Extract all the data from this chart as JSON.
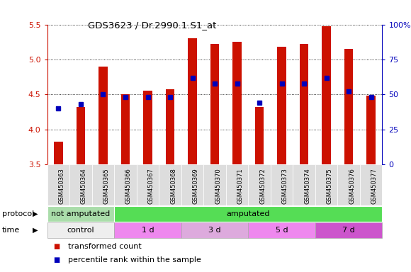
{
  "title": "GDS3623 / Dr.2990.1.S1_at",
  "samples": [
    "GSM450363",
    "GSM450364",
    "GSM450365",
    "GSM450366",
    "GSM450367",
    "GSM450368",
    "GSM450369",
    "GSM450370",
    "GSM450371",
    "GSM450372",
    "GSM450373",
    "GSM450374",
    "GSM450375",
    "GSM450376",
    "GSM450377"
  ],
  "red_values": [
    3.83,
    4.32,
    4.9,
    4.5,
    4.55,
    4.58,
    5.3,
    5.22,
    5.25,
    4.32,
    5.18,
    5.22,
    5.48,
    5.15,
    4.48
  ],
  "blue_percentiles": [
    40,
    43,
    50,
    48,
    48,
    48,
    62,
    58,
    58,
    44,
    58,
    58,
    62,
    52,
    48
  ],
  "ylim_left": [
    3.5,
    5.5
  ],
  "ylim_right": [
    0,
    100
  ],
  "yticks_left": [
    3.5,
    4.0,
    4.5,
    5.0,
    5.5
  ],
  "yticks_right": [
    0,
    25,
    50,
    75,
    100
  ],
  "ytick_labels_right": [
    "0",
    "25",
    "50",
    "75",
    "100%"
  ],
  "bar_color": "#cc1100",
  "dot_color": "#0000bb",
  "protocol_groups": [
    {
      "label": "not amputated",
      "start": 0,
      "end": 3,
      "color": "#aaddaa"
    },
    {
      "label": "amputated",
      "start": 3,
      "end": 15,
      "color": "#55dd55"
    }
  ],
  "time_groups": [
    {
      "label": "control",
      "start": 0,
      "end": 3,
      "color": "#eeeeee"
    },
    {
      "label": "1 d",
      "start": 3,
      "end": 6,
      "color": "#ee88ee"
    },
    {
      "label": "3 d",
      "start": 6,
      "end": 9,
      "color": "#ddaadd"
    },
    {
      "label": "5 d",
      "start": 9,
      "end": 12,
      "color": "#ee88ee"
    },
    {
      "label": "7 d",
      "start": 12,
      "end": 15,
      "color": "#cc55cc"
    }
  ],
  "legend_items": [
    {
      "label": "transformed count",
      "color": "#cc1100"
    },
    {
      "label": "percentile rank within the sample",
      "color": "#0000bb"
    }
  ],
  "left_tick_color": "#cc1100",
  "right_tick_color": "#0000bb",
  "background_color": "#ffffff",
  "bar_width": 0.4,
  "tick_label_bg": "#dddddd"
}
